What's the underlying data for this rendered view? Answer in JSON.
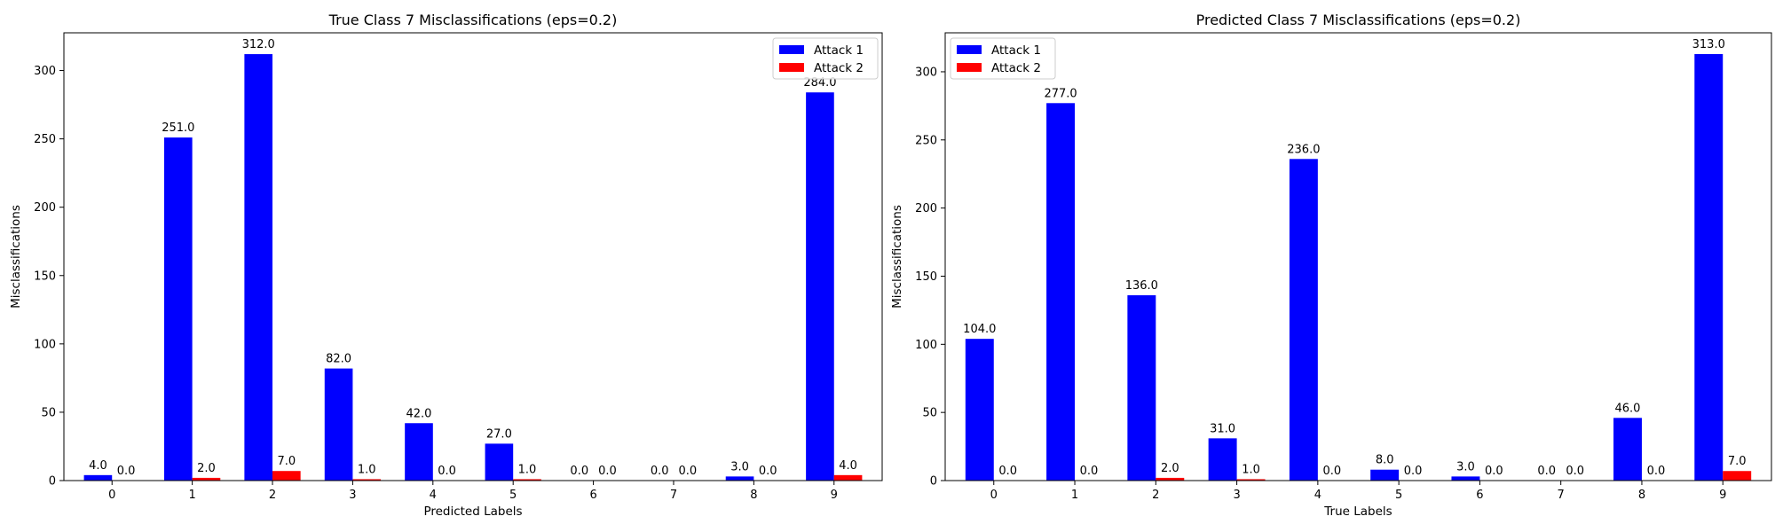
{
  "chart_data": [
    {
      "type": "bar",
      "title": "True Class 7 Misclassifications (eps=0.2)",
      "xlabel": "Predicted Labels",
      "ylabel": "Misclassifications",
      "categories": [
        "0",
        "1",
        "2",
        "3",
        "4",
        "5",
        "6",
        "7",
        "8",
        "9"
      ],
      "series": [
        {
          "name": "Attack 1",
          "color": "#0000ff",
          "values": [
            4.0,
            251.0,
            312.0,
            82.0,
            42.0,
            27.0,
            0.0,
            0.0,
            3.0,
            284.0
          ],
          "labels": [
            "4.0",
            "251.0",
            "312.0",
            "82.0",
            "42.0",
            "27.0",
            "0.0",
            "0.0",
            "3.0",
            "284.0"
          ]
        },
        {
          "name": "Attack 2",
          "color": "#ff0000",
          "values": [
            0.0,
            2.0,
            7.0,
            1.0,
            0.0,
            1.0,
            0.0,
            0.0,
            0.0,
            4.0
          ],
          "labels": [
            "0.0",
            "2.0",
            "7.0",
            "1.0",
            "0.0",
            "1.0",
            "0.0",
            "0.0",
            "0.0",
            "4.0"
          ]
        }
      ],
      "yticks": [
        0,
        50,
        100,
        150,
        200,
        250,
        300
      ],
      "yticklabels": [
        "0",
        "50",
        "100",
        "150",
        "200",
        "250",
        "300"
      ],
      "ylim": [
        0,
        327.6
      ],
      "legend_position": "top-right",
      "grid": false
    },
    {
      "type": "bar",
      "title": "Predicted Class 7 Misclassifications (eps=0.2)",
      "xlabel": "True Labels",
      "ylabel": "Misclassifications",
      "categories": [
        "0",
        "1",
        "2",
        "3",
        "4",
        "5",
        "6",
        "7",
        "8",
        "9"
      ],
      "series": [
        {
          "name": "Attack 1",
          "color": "#0000ff",
          "values": [
            104.0,
            277.0,
            136.0,
            31.0,
            236.0,
            8.0,
            3.0,
            0.0,
            46.0,
            313.0
          ],
          "labels": [
            "104.0",
            "277.0",
            "136.0",
            "31.0",
            "236.0",
            "8.0",
            "3.0",
            "0.0",
            "46.0",
            "313.0"
          ]
        },
        {
          "name": "Attack 2",
          "color": "#ff0000",
          "values": [
            0.0,
            0.0,
            2.0,
            1.0,
            0.0,
            0.0,
            0.0,
            0.0,
            0.0,
            7.0
          ],
          "labels": [
            "0.0",
            "0.0",
            "2.0",
            "1.0",
            "0.0",
            "0.0",
            "0.0",
            "0.0",
            "0.0",
            "7.0"
          ]
        }
      ],
      "yticks": [
        0,
        50,
        100,
        150,
        200,
        250,
        300
      ],
      "yticklabels": [
        "0",
        "50",
        "100",
        "150",
        "200",
        "250",
        "300"
      ],
      "ylim": [
        0,
        328.6
      ],
      "legend_position": "top-left",
      "grid": false
    }
  ]
}
